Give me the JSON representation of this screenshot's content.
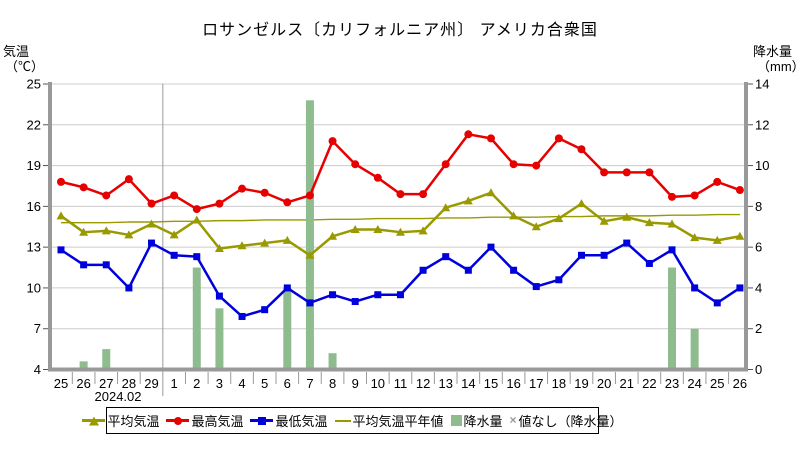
{
  "title": "ロサンゼルス〔カリフォルニア州〕 アメリカ合衆国",
  "axes": {
    "left_label_line1": "気温",
    "left_label_line2": "（℃）",
    "right_label_line1": "降水量",
    "right_label_line2": "（mm）",
    "month_label": "2024.02"
  },
  "legend": [
    {
      "label": "平均気温"
    },
    {
      "label": "最高気温"
    },
    {
      "label": "最低気温"
    },
    {
      "label": "平均気温平年値"
    },
    {
      "label": "降水量"
    },
    {
      "symbol": "×",
      "label": "値なし（降水量）"
    }
  ],
  "colors": {
    "avg": "#999900",
    "max": "#e60000",
    "min": "#0000dd",
    "precip": "#8fbc8f",
    "axis": "#999999",
    "grid": "#cccccc",
    "separator": "#999999",
    "tick": "#555555",
    "text": "#000000"
  },
  "chart_data": {
    "type": "line+bar",
    "title": "ロサンゼルス〔カリフォルニア州〕 アメリカ合衆国",
    "x_tick_labels": [
      "25",
      "26",
      "27",
      "28",
      "29",
      "1",
      "2",
      "3",
      "4",
      "5",
      "6",
      "7",
      "8",
      "9",
      "10",
      "11",
      "12",
      "13",
      "14",
      "15",
      "16",
      "17",
      "18",
      "19",
      "20",
      "21",
      "22",
      "23",
      "24",
      "25",
      "26"
    ],
    "x_axis": {
      "month_label": "2024.02",
      "month_separator_after_index": 4
    },
    "temp_axis": {
      "label": "気温（℃）",
      "min": 4,
      "max": 25,
      "ticks": [
        25,
        22,
        19,
        16,
        13,
        10,
        7,
        4
      ]
    },
    "precip_axis": {
      "label": "降水量（mm）",
      "min": 0,
      "max": 14,
      "ticks": [
        14,
        12,
        10,
        8,
        6,
        4,
        2,
        0
      ]
    },
    "grid": true,
    "legend_position": "bottom",
    "series": [
      {
        "name": "平均気温",
        "type": "line",
        "marker": "triangle",
        "axis": "temp",
        "color_key": "avg",
        "values": [
          15.3,
          14.1,
          14.2,
          13.9,
          14.7,
          13.9,
          15.0,
          12.9,
          13.1,
          13.3,
          13.5,
          12.4,
          13.8,
          14.3,
          14.3,
          14.1,
          14.2,
          15.9,
          16.4,
          17.0,
          15.3,
          14.5,
          15.1,
          16.2,
          14.9,
          15.2,
          14.8,
          14.7,
          13.7,
          13.5,
          13.8
        ]
      },
      {
        "name": "最高気温",
        "type": "line",
        "marker": "circle",
        "axis": "temp",
        "color_key": "max",
        "values": [
          17.8,
          17.4,
          16.8,
          18.0,
          16.2,
          16.8,
          15.8,
          16.2,
          17.3,
          17.0,
          16.3,
          16.8,
          20.8,
          19.1,
          18.1,
          16.9,
          16.9,
          19.1,
          21.3,
          21.0,
          19.1,
          19.0,
          21.0,
          20.2,
          18.5,
          18.5,
          18.5,
          16.7,
          16.8,
          17.8,
          17.2
        ]
      },
      {
        "name": "最低気温",
        "type": "line",
        "marker": "square",
        "axis": "temp",
        "color_key": "min",
        "values": [
          12.8,
          11.7,
          11.7,
          10.0,
          13.3,
          12.4,
          12.3,
          9.4,
          7.9,
          8.4,
          10.0,
          8.9,
          9.5,
          9.0,
          9.5,
          9.5,
          11.3,
          12.3,
          11.3,
          13.0,
          11.3,
          10.1,
          10.6,
          12.4,
          12.4,
          13.3,
          11.8,
          12.8,
          10.0,
          8.9,
          10.0
        ]
      },
      {
        "name": "平均気温平年値",
        "type": "line",
        "marker": "none",
        "axis": "temp",
        "color_key": "avg",
        "values": [
          14.8,
          14.8,
          14.8,
          14.85,
          14.85,
          14.9,
          14.9,
          14.95,
          14.95,
          15.0,
          15.0,
          15.0,
          15.05,
          15.05,
          15.1,
          15.1,
          15.1,
          15.15,
          15.15,
          15.2,
          15.2,
          15.2,
          15.25,
          15.25,
          15.3,
          15.3,
          15.3,
          15.35,
          15.35,
          15.4,
          15.4
        ]
      },
      {
        "name": "降水量",
        "type": "bar",
        "axis": "precip",
        "color_key": "precip",
        "values": [
          0,
          0.4,
          1.0,
          0,
          0,
          0,
          5.0,
          3.0,
          0,
          0,
          4.0,
          13.2,
          0.8,
          0,
          0,
          0,
          0,
          0,
          0,
          0,
          0,
          0,
          0,
          0,
          0,
          0,
          0,
          5.0,
          2.0,
          0,
          0
        ]
      }
    ]
  }
}
